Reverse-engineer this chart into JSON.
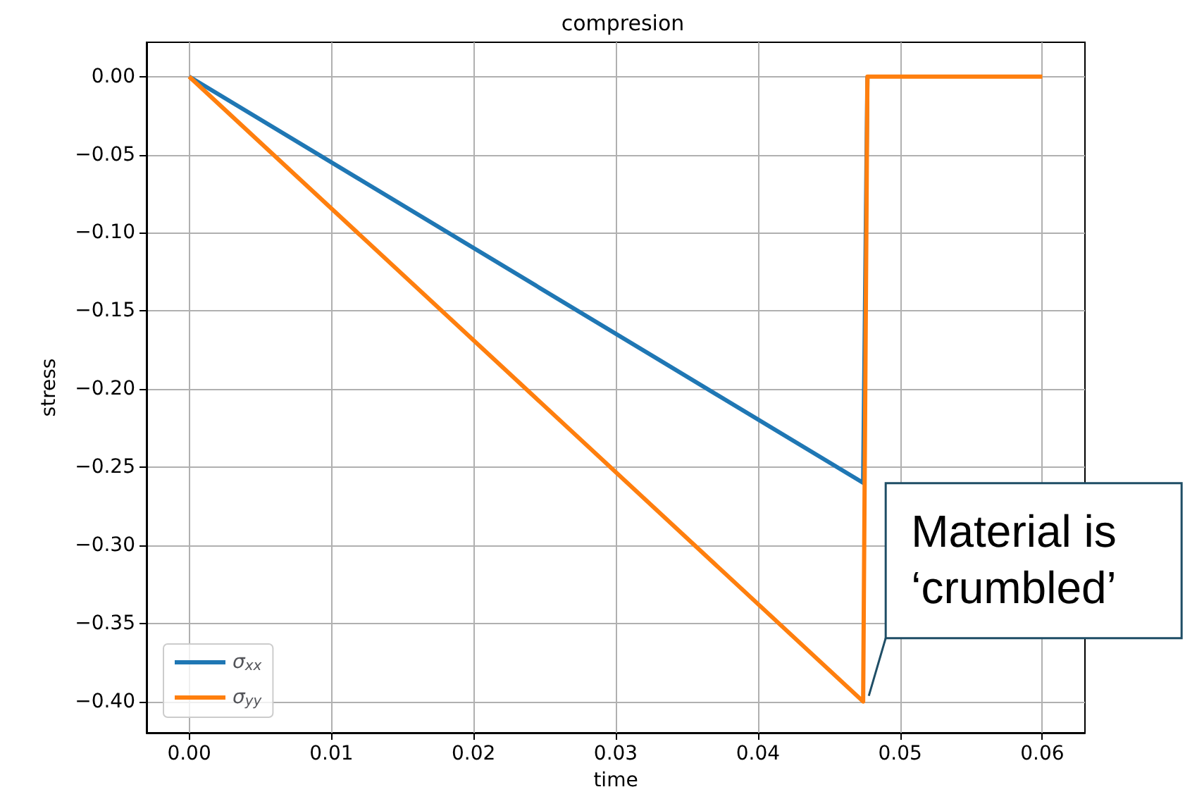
{
  "chart_data": {
    "type": "line",
    "title": "compresion",
    "xlabel": "time",
    "ylabel": "stress",
    "series": [
      {
        "name": "σ$_{xx}$",
        "color": "#1f77b4",
        "x": [
          0,
          0.0474,
          0.0477
        ],
        "values": [
          0,
          -0.26,
          0
        ]
      },
      {
        "name": "σ$_{yy}$",
        "color": "#ff7f0e",
        "x": [
          0,
          0.0474,
          0.0477,
          0.06
        ],
        "values": [
          0,
          -0.4,
          0,
          0
        ]
      }
    ],
    "xlim": [
      -0.003,
      0.063
    ],
    "ylim": [
      -0.42,
      0.022
    ],
    "xticks": [
      {
        "value": 0,
        "label": "0.00"
      },
      {
        "value": 0.01,
        "label": "0.01"
      },
      {
        "value": 0.02,
        "label": "0.02"
      },
      {
        "value": 0.03,
        "label": "0.03"
      },
      {
        "value": 0.04,
        "label": "0.04"
      },
      {
        "value": 0.05,
        "label": "0.05"
      },
      {
        "value": 0.06,
        "label": "0.06"
      }
    ],
    "yticks": [
      {
        "value": 0,
        "label": "0.00"
      },
      {
        "value": -0.05,
        "label": "−0.05"
      },
      {
        "value": -0.1,
        "label": "−0.10"
      },
      {
        "value": -0.15,
        "label": "−0.15"
      },
      {
        "value": -0.2,
        "label": "−0.20"
      },
      {
        "value": -0.25,
        "label": "−0.25"
      },
      {
        "value": -0.3,
        "label": "−0.30"
      },
      {
        "value": -0.35,
        "label": "−0.35"
      },
      {
        "value": -0.4,
        "label": "−0.40"
      }
    ],
    "grid": true,
    "legend": "bottom left",
    "marker": "none",
    "line_style": "solid",
    "annotations": [
      {
        "text": "Material is\n‘crumbled’",
        "x": 0.0475,
        "y": -0.4
      }
    ]
  }
}
